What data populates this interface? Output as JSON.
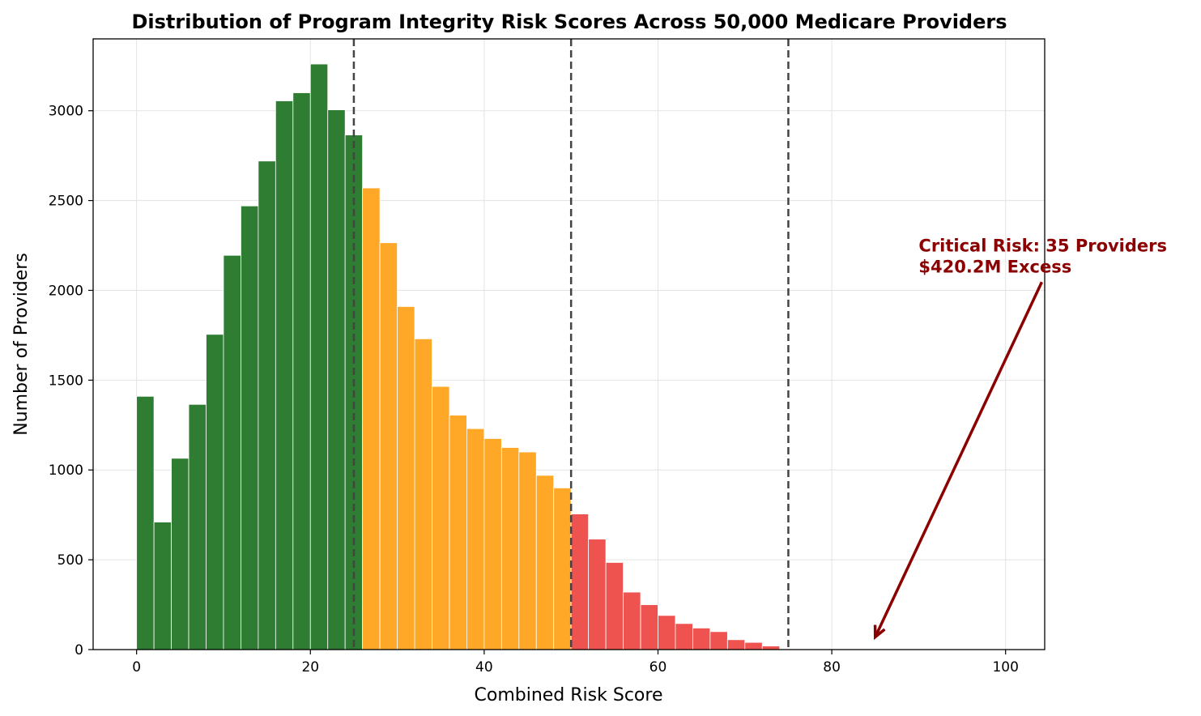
{
  "chart_data": {
    "type": "bar",
    "title": "Distribution of Program Integrity Risk Scores Across 50,000 Medicare Providers",
    "xlabel": "Combined Risk Score",
    "ylabel": "Number of Providers",
    "xlim": [
      -5,
      104.5
    ],
    "ylim": [
      0,
      3400
    ],
    "xticks": [
      0,
      20,
      40,
      60,
      80,
      100
    ],
    "yticks": [
      0,
      500,
      1000,
      1500,
      2000,
      2500,
      3000
    ],
    "grid": true,
    "bin_width": 2,
    "bin_starts": [
      0,
      2,
      4,
      6,
      8,
      10,
      12,
      14,
      16,
      18,
      20,
      22,
      24,
      26,
      28,
      30,
      32,
      34,
      36,
      38,
      40,
      42,
      44,
      46,
      48,
      50,
      52,
      54,
      56,
      58,
      60,
      62,
      64,
      66,
      68,
      70,
      72
    ],
    "values": [
      1410,
      710,
      1065,
      1365,
      1755,
      2195,
      2470,
      2720,
      3055,
      3100,
      3260,
      3005,
      2865,
      2570,
      2265,
      1910,
      1730,
      1465,
      1305,
      1230,
      1175,
      1125,
      1100,
      970,
      900,
      755,
      615,
      485,
      320,
      250,
      190,
      145,
      120,
      100,
      55,
      40,
      20
    ],
    "colors": {
      "low": "#2e7d32",
      "medium": "#ffa726",
      "high": "#ef5350",
      "threshold_line": "#444444",
      "annotation": "#8b0000"
    },
    "thresholds": [
      25,
      50,
      75
    ],
    "annotation": {
      "lines": [
        "Critical Risk: 35 Providers",
        "$420.2M Excess"
      ],
      "text_x": 90,
      "text_y": 2100,
      "arrow_tip_x": 85,
      "arrow_tip_y": 70
    }
  }
}
